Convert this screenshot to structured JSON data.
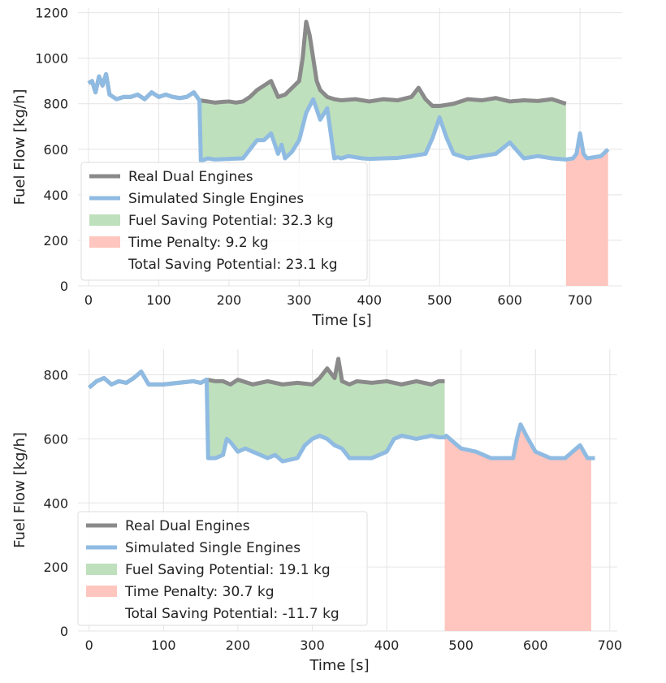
{
  "colors": {
    "real": "#8a8a8a",
    "simulated": "#8fbbe2",
    "fuel_saving": "#bfe0bd",
    "time_penalty": "#ffc6bf",
    "grid": "#e4e4e4"
  },
  "chart_data": [
    {
      "type": "line",
      "xlabel": "Time [s]",
      "ylabel": "Fuel Flow [kg/h]",
      "xlim": [
        -15,
        760
      ],
      "ylim": [
        0,
        1220
      ],
      "xticks": [
        0,
        100,
        200,
        300,
        400,
        500,
        600,
        700
      ],
      "yticks": [
        0,
        200,
        400,
        600,
        800,
        1000,
        1200
      ],
      "grid": true,
      "legend_position": "lower-left",
      "legend": {
        "real": "Real Dual Engines",
        "simulated": "Simulated Single Engines",
        "fuel_saving": "Fuel Saving Potential: 32.3 kg",
        "time_penalty": "Time Penalty: 9.2 kg",
        "total": "Total Saving Potential: 23.1 kg"
      },
      "series": [
        {
          "name": "Real Dual Engines",
          "x": [
            0,
            5,
            10,
            15,
            20,
            25,
            30,
            35,
            40,
            50,
            60,
            70,
            80,
            90,
            100,
            110,
            120,
            130,
            140,
            150,
            158,
            170,
            180,
            190,
            200,
            210,
            220,
            230,
            240,
            250,
            260,
            270,
            280,
            290,
            300,
            305,
            310,
            315,
            320,
            325,
            330,
            340,
            350,
            360,
            380,
            400,
            420,
            440,
            460,
            470,
            480,
            490,
            500,
            520,
            540,
            560,
            580,
            600,
            620,
            640,
            660,
            680
          ],
          "values": [
            890,
            900,
            850,
            920,
            880,
            930,
            840,
            830,
            820,
            830,
            830,
            840,
            820,
            850,
            830,
            840,
            830,
            825,
            830,
            850,
            815,
            810,
            805,
            808,
            810,
            805,
            810,
            830,
            860,
            880,
            900,
            830,
            840,
            870,
            900,
            1000,
            1160,
            1100,
            1000,
            900,
            860,
            830,
            820,
            815,
            820,
            810,
            820,
            815,
            830,
            870,
            820,
            790,
            790,
            800,
            820,
            815,
            825,
            810,
            815,
            812,
            820,
            800
          ]
        },
        {
          "name": "Simulated Single Engines",
          "x": [
            0,
            5,
            10,
            15,
            20,
            25,
            30,
            35,
            40,
            50,
            60,
            70,
            80,
            90,
            100,
            110,
            120,
            130,
            140,
            150,
            158,
            160,
            170,
            180,
            200,
            220,
            230,
            240,
            250,
            260,
            270,
            275,
            280,
            290,
            300,
            310,
            320,
            330,
            340,
            350,
            355,
            360,
            370,
            380,
            390,
            400,
            420,
            440,
            460,
            480,
            490,
            500,
            510,
            520,
            540,
            560,
            580,
            600,
            620,
            640,
            660,
            680,
            690,
            695,
            700,
            705,
            710,
            720,
            730,
            740
          ],
          "values": [
            890,
            900,
            850,
            920,
            880,
            930,
            840,
            830,
            820,
            830,
            830,
            840,
            820,
            850,
            830,
            840,
            830,
            825,
            830,
            850,
            815,
            550,
            560,
            555,
            558,
            560,
            600,
            640,
            640,
            670,
            580,
            620,
            560,
            590,
            640,
            760,
            820,
            730,
            780,
            560,
            565,
            560,
            570,
            565,
            560,
            558,
            560,
            562,
            570,
            580,
            650,
            740,
            650,
            580,
            560,
            570,
            580,
            630,
            560,
            570,
            560,
            555,
            560,
            580,
            670,
            580,
            560,
            565,
            570,
            600
          ]
        }
      ],
      "fills": {
        "fuel_saving_x_range": [
          158,
          680
        ],
        "time_penalty_x_range": [
          680,
          740
        ]
      }
    },
    {
      "type": "line",
      "xlabel": "Time [s]",
      "ylabel": "Fuel Flow [kg/h]",
      "xlim": [
        -15,
        710
      ],
      "ylim": [
        0,
        880
      ],
      "xticks": [
        0,
        100,
        200,
        300,
        400,
        500,
        600,
        700
      ],
      "yticks": [
        0,
        200,
        400,
        600,
        800
      ],
      "grid": true,
      "legend_position": "lower-left",
      "legend": {
        "real": "Real Dual Engines",
        "simulated": "Simulated Single Engines",
        "fuel_saving": "Fuel Saving Potential: 19.1 kg",
        "time_penalty": "Time Penalty: 30.7 kg",
        "total": "Total Saving Potential: -11.7 kg"
      },
      "series": [
        {
          "name": "Real Dual Engines",
          "x": [
            0,
            10,
            20,
            30,
            40,
            50,
            60,
            70,
            80,
            90,
            100,
            120,
            140,
            150,
            158,
            170,
            180,
            190,
            200,
            220,
            240,
            260,
            280,
            300,
            310,
            320,
            330,
            335,
            340,
            350,
            360,
            380,
            400,
            420,
            440,
            460,
            470,
            478
          ],
          "values": [
            760,
            780,
            790,
            770,
            780,
            775,
            790,
            810,
            770,
            770,
            770,
            775,
            780,
            775,
            785,
            780,
            780,
            770,
            785,
            770,
            780,
            770,
            775,
            770,
            790,
            820,
            790,
            850,
            780,
            770,
            780,
            775,
            780,
            770,
            780,
            770,
            780,
            780
          ]
        },
        {
          "name": "Simulated Single Engines",
          "x": [
            0,
            10,
            20,
            30,
            40,
            50,
            60,
            70,
            80,
            90,
            100,
            120,
            140,
            150,
            158,
            160,
            170,
            180,
            185,
            190,
            200,
            210,
            220,
            240,
            250,
            260,
            280,
            290,
            300,
            310,
            320,
            330,
            340,
            350,
            360,
            380,
            400,
            410,
            420,
            440,
            460,
            470,
            478,
            480,
            490,
            500,
            520,
            540,
            560,
            570,
            575,
            580,
            590,
            600,
            620,
            640,
            660,
            670,
            680
          ],
          "values": [
            760,
            780,
            790,
            770,
            780,
            775,
            790,
            810,
            770,
            770,
            770,
            775,
            780,
            775,
            785,
            540,
            540,
            550,
            600,
            590,
            560,
            570,
            560,
            540,
            550,
            530,
            540,
            580,
            600,
            610,
            600,
            580,
            570,
            540,
            540,
            540,
            560,
            600,
            610,
            600,
            610,
            605,
            605,
            610,
            590,
            570,
            560,
            540,
            540,
            540,
            600,
            645,
            600,
            560,
            540,
            540,
            580,
            540,
            540
          ]
        }
      ],
      "fills": {
        "fuel_saving_x_range": [
          158,
          478
        ],
        "time_penalty_x_range": [
          478,
          675
        ]
      }
    }
  ]
}
